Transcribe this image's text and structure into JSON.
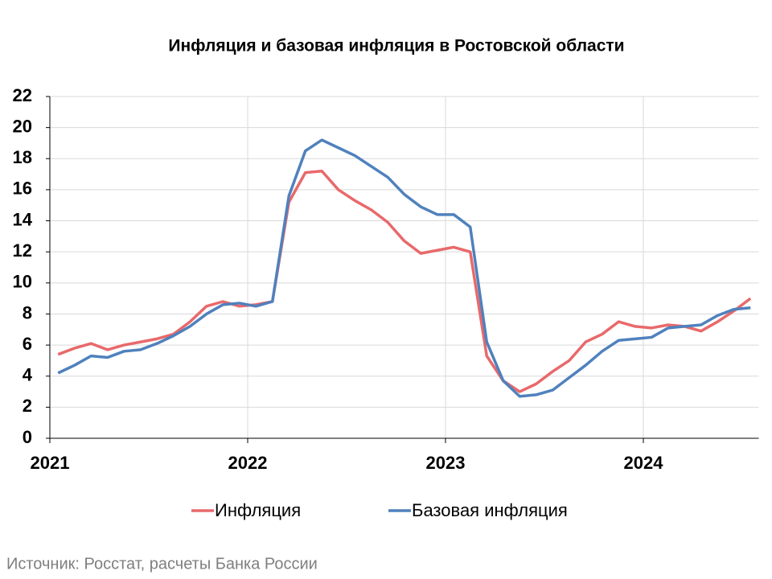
{
  "chart_data": {
    "type": "line",
    "title": "Инфляция и базовая инфляция в Ростовской области",
    "source": "Источник: Росстат, расчеты Банка России",
    "categories": [
      "2021",
      null,
      null,
      null,
      null,
      null,
      null,
      null,
      null,
      null,
      null,
      null,
      "2022",
      null,
      null,
      null,
      null,
      null,
      null,
      null,
      null,
      null,
      null,
      null,
      "2023",
      null,
      null,
      null,
      null,
      null,
      null,
      null,
      null,
      null,
      null,
      null,
      "2024",
      null,
      null,
      null,
      null,
      null,
      null
    ],
    "series": [
      {
        "name": "Инфляция",
        "color": "#e8696b",
        "values": [
          5.4,
          5.8,
          6.1,
          5.7,
          6.0,
          6.2,
          6.4,
          6.7,
          7.5,
          8.5,
          8.8,
          8.5,
          8.6,
          8.8,
          15.2,
          17.1,
          17.2,
          16.0,
          15.3,
          14.7,
          13.9,
          12.7,
          11.9,
          12.1,
          12.3,
          12.0,
          5.3,
          3.7,
          3.0,
          3.5,
          4.3,
          5.0,
          6.2,
          6.7,
          7.5,
          7.2,
          7.1,
          7.3,
          7.2,
          6.9,
          7.5,
          8.2,
          9.0
        ]
      },
      {
        "name": "Базовая инфляция",
        "color": "#4f81bd",
        "values": [
          4.2,
          4.7,
          5.3,
          5.2,
          5.6,
          5.7,
          6.1,
          6.6,
          7.2,
          8.0,
          8.6,
          8.7,
          8.5,
          8.8,
          15.6,
          18.5,
          19.2,
          18.7,
          18.2,
          17.5,
          16.8,
          15.7,
          14.9,
          14.4,
          14.4,
          13.6,
          6.2,
          3.7,
          2.7,
          2.8,
          3.1,
          3.9,
          4.7,
          5.6,
          6.3,
          6.4,
          6.5,
          7.1,
          7.2,
          7.3,
          7.9,
          8.3,
          8.4
        ]
      }
    ],
    "ylim": [
      0,
      22
    ],
    "yticks": [
      0,
      2,
      4,
      6,
      8,
      10,
      12,
      14,
      16,
      18,
      20,
      22
    ],
    "grid": true,
    "legend": "bottom"
  }
}
